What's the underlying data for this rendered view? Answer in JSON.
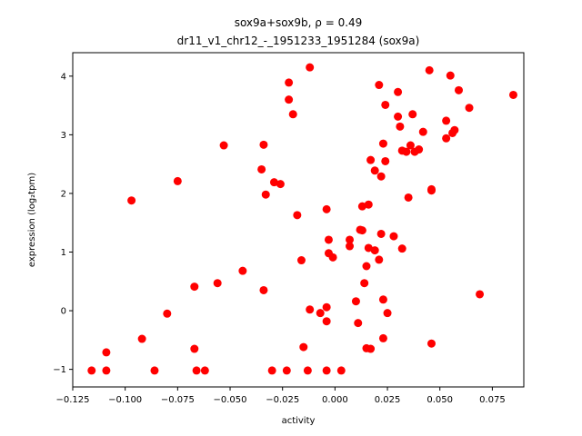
{
  "chart_data": {
    "type": "scatter",
    "title_line1": "sox9a+sox9b, ρ = 0.49",
    "title_line2": "dr11_v1_chr12_-_1951233_1951284 (sox9a)",
    "xlabel": "activity",
    "ylabel": "expression (log₂tpm)",
    "xlim": [
      -0.125,
      0.09
    ],
    "ylim": [
      -1.3,
      4.4
    ],
    "xticks": [
      -0.125,
      -0.1,
      -0.075,
      -0.05,
      -0.025,
      0.0,
      0.025,
      0.05,
      0.075
    ],
    "xtick_labels": [
      "−0.125",
      "−0.100",
      "−0.075",
      "−0.050",
      "−0.025",
      "0.000",
      "0.025",
      "0.050",
      "0.075"
    ],
    "yticks": [
      -1,
      0,
      1,
      2,
      3,
      4
    ],
    "ytick_labels": [
      "−1",
      "0",
      "1",
      "2",
      "3",
      "4"
    ],
    "grid": false,
    "marker_color": "#ff0000",
    "series": [
      {
        "points": [
          [
            -0.116,
            -1.02
          ],
          [
            -0.109,
            -1.02
          ],
          [
            -0.109,
            -0.71
          ],
          [
            -0.097,
            1.88
          ],
          [
            -0.092,
            -0.48
          ],
          [
            -0.086,
            -1.02
          ],
          [
            -0.08,
            -0.05
          ],
          [
            -0.075,
            2.21
          ],
          [
            -0.067,
            0.41
          ],
          [
            -0.067,
            -0.65
          ],
          [
            -0.066,
            -1.02
          ],
          [
            -0.062,
            -1.02
          ],
          [
            -0.056,
            0.47
          ],
          [
            -0.053,
            2.82
          ],
          [
            -0.044,
            0.68
          ],
          [
            -0.035,
            2.41
          ],
          [
            -0.034,
            2.83
          ],
          [
            -0.034,
            0.35
          ],
          [
            -0.033,
            1.98
          ],
          [
            -0.029,
            2.19
          ],
          [
            -0.026,
            2.16
          ],
          [
            -0.03,
            -1.02
          ],
          [
            -0.022,
            3.89
          ],
          [
            -0.022,
            3.6
          ],
          [
            -0.02,
            3.35
          ],
          [
            -0.023,
            -1.02
          ],
          [
            -0.018,
            1.63
          ],
          [
            -0.016,
            0.86
          ],
          [
            -0.015,
            -0.62
          ],
          [
            -0.013,
            -1.02
          ],
          [
            -0.012,
            0.02
          ],
          [
            -0.012,
            4.15
          ],
          [
            -0.007,
            -0.04
          ],
          [
            -0.004,
            1.73
          ],
          [
            -0.004,
            0.06
          ],
          [
            -0.004,
            -0.18
          ],
          [
            -0.003,
            1.21
          ],
          [
            -0.003,
            0.98
          ],
          [
            -0.001,
            0.91
          ],
          [
            -0.004,
            -1.02
          ],
          [
            0.003,
            -1.02
          ],
          [
            0.007,
            1.21
          ],
          [
            0.007,
            1.1
          ],
          [
            0.01,
            0.16
          ],
          [
            0.011,
            -0.21
          ],
          [
            0.012,
            1.38
          ],
          [
            0.013,
            1.37
          ],
          [
            0.013,
            1.78
          ],
          [
            0.014,
            0.47
          ],
          [
            0.015,
            0.76
          ],
          [
            0.015,
            -0.64
          ],
          [
            0.016,
            1.07
          ],
          [
            0.017,
            2.57
          ],
          [
            0.016,
            1.81
          ],
          [
            0.017,
            -0.65
          ],
          [
            0.019,
            1.03
          ],
          [
            0.019,
            2.39
          ],
          [
            0.021,
            3.85
          ],
          [
            0.021,
            0.87
          ],
          [
            0.022,
            1.31
          ],
          [
            0.022,
            2.29
          ],
          [
            0.023,
            0.19
          ],
          [
            0.023,
            -0.47
          ],
          [
            0.023,
            2.85
          ],
          [
            0.024,
            2.55
          ],
          [
            0.024,
            3.51
          ],
          [
            0.025,
            -0.04
          ],
          [
            0.028,
            1.27
          ],
          [
            0.03,
            3.73
          ],
          [
            0.03,
            3.31
          ],
          [
            0.031,
            3.14
          ],
          [
            0.032,
            1.06
          ],
          [
            0.032,
            2.73
          ],
          [
            0.034,
            2.71
          ],
          [
            0.035,
            1.93
          ],
          [
            0.036,
            2.82
          ],
          [
            0.037,
            3.35
          ],
          [
            0.038,
            2.71
          ],
          [
            0.04,
            2.75
          ],
          [
            0.042,
            3.05
          ],
          [
            0.045,
            4.1
          ],
          [
            0.046,
            2.05
          ],
          [
            0.046,
            2.07
          ],
          [
            0.046,
            -0.56
          ],
          [
            0.053,
            2.94
          ],
          [
            0.053,
            3.24
          ],
          [
            0.055,
            4.01
          ],
          [
            0.056,
            3.03
          ],
          [
            0.057,
            3.08
          ],
          [
            0.059,
            3.76
          ],
          [
            0.064,
            3.46
          ],
          [
            0.069,
            0.28
          ],
          [
            0.085,
            3.68
          ]
        ]
      }
    ]
  }
}
